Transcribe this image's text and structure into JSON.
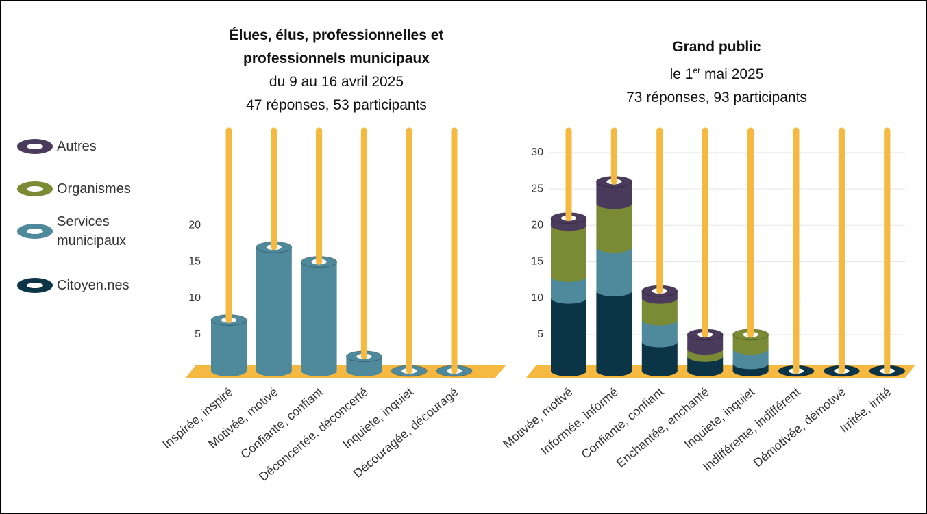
{
  "legend": [
    "Autres",
    "Organismes",
    "Services municipaux",
    "Citoyen.nes"
  ],
  "chart_data": [
    {
      "type": "stacked-cylinder",
      "title": "Élues, élus, professionnelles et professionnels municipaux",
      "subtitle": "du 9 au 16 avril 2025",
      "note": "47 réponses, 53 participants",
      "categories": [
        "Inspirée, inspiré",
        "Motivée, motivé",
        "Confiante, confiant",
        "Déconcertée, déconcerté",
        "Inquiete, inquiet",
        "Découragée, découragé"
      ],
      "series": [
        {
          "name": "Services municipaux",
          "color": "#4e8a9c",
          "values": [
            7,
            17,
            15,
            2,
            0,
            0
          ]
        }
      ],
      "ylim": [
        0,
        33
      ],
      "yticks": [
        0,
        5,
        10,
        15,
        20
      ],
      "grid": false
    },
    {
      "type": "stacked-cylinder",
      "title": "Grand public",
      "subtitle": {
        "text": "le 1",
        "sup": "er",
        "rest": "mai 2025"
      },
      "note": "73 réponses, 93 participants",
      "categories": [
        "Motivée, motivé",
        "Informée, informé",
        "Confiante, confiant",
        "Enchantée, enchanté",
        "Inquiete, inquiet",
        "Indifférente, indifférent",
        "Démotivée, démotivé",
        "Irritée, irrité"
      ],
      "series": [
        {
          "name": "Citoyen.nes",
          "color": "#0b3447",
          "values": [
            10,
            11,
            4,
            2,
            1,
            0,
            0,
            0
          ]
        },
        {
          "name": "Services municipaux",
          "color": "#4e8a9c",
          "values": [
            3,
            6,
            3,
            0,
            2,
            0,
            0,
            0
          ]
        },
        {
          "name": "Organismes",
          "color": "#7a8a35",
          "values": [
            7,
            6,
            3,
            1,
            2,
            0,
            0,
            0
          ]
        },
        {
          "name": "Autres",
          "color": "#4a3a5c",
          "values": [
            1,
            3,
            1,
            2,
            0,
            0,
            0,
            0
          ]
        }
      ],
      "ylim": [
        0,
        33
      ],
      "yticks": [
        0,
        5,
        10,
        15,
        20,
        25,
        30
      ],
      "grid": true
    }
  ]
}
